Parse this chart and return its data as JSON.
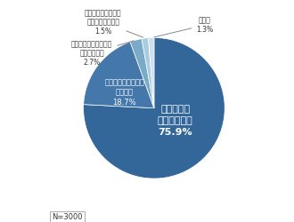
{
  "values": [
    75.9,
    18.7,
    2.7,
    1.5,
    1.3
  ],
  "colors": [
    "#336699",
    "#4477aa",
    "#7baac8",
    "#aacce0",
    "#cce0f0"
  ],
  "n_label": "N=3000",
  "background_color": "#ffffff",
  "label_color": "#333333",
  "inner_label_large": "親子で話し\n合って決める\n75.9%",
  "inner_label_medium": "子どもが一人で考え\nて決める\n18.7%",
  "ann_school_text": "学校や塩の先生が与\nえたテーマにする\n1.5%",
  "ann_parent_text": "親が子どもにテーマを\n与えて決める\n2.7%",
  "ann_other_text": "その他\n1.3%"
}
